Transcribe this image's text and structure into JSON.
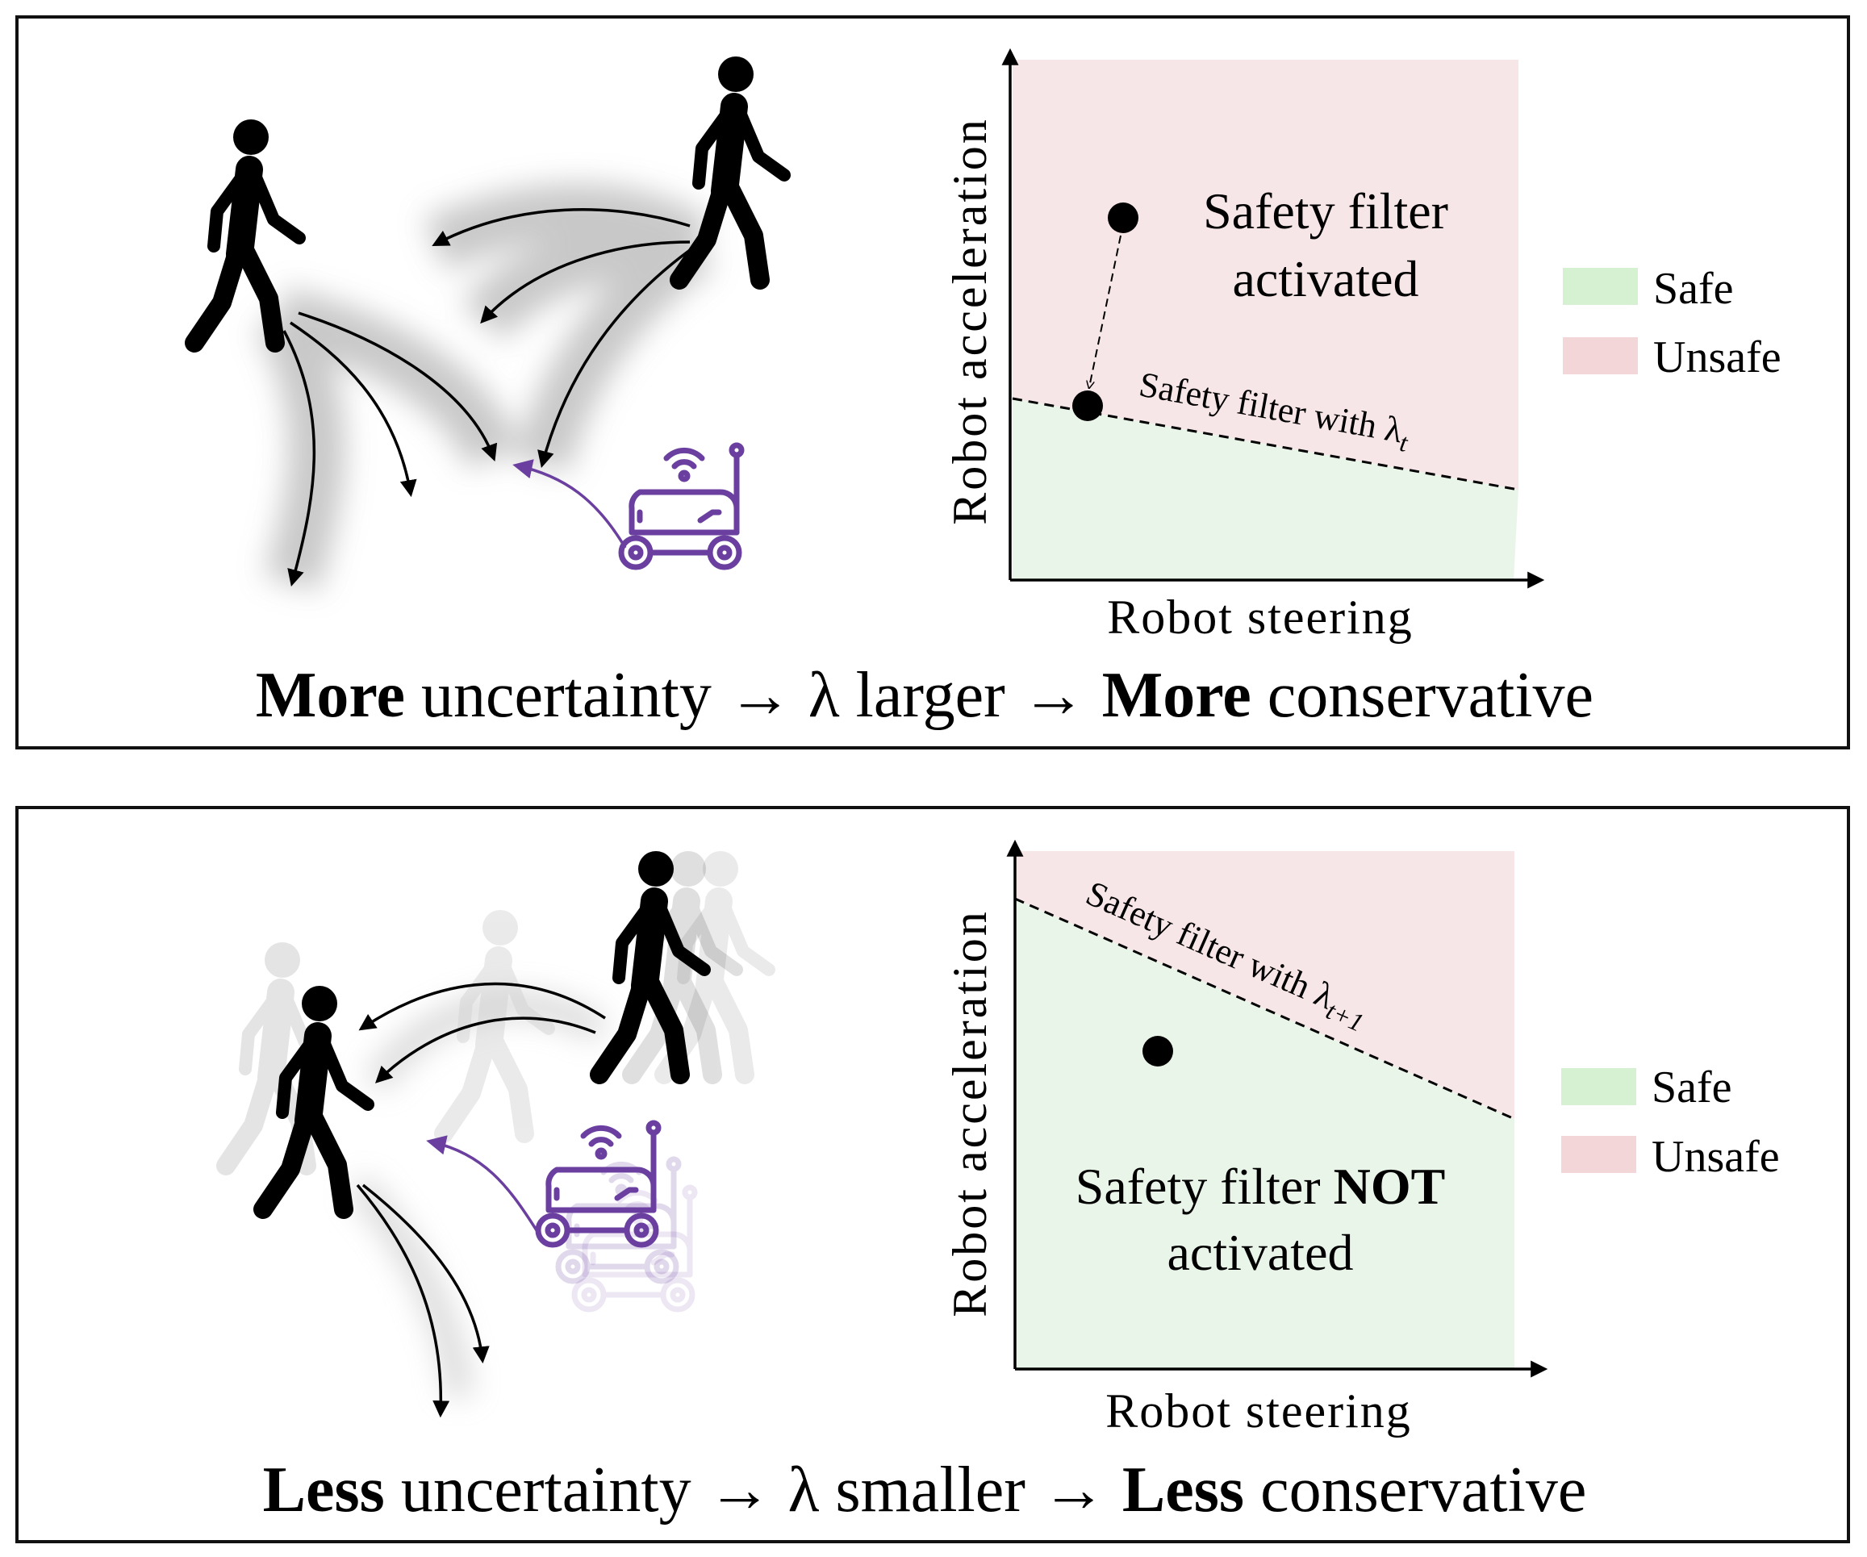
{
  "panels": [
    {
      "caption": {
        "bold1": "More",
        "mid": " uncertainty → λ larger → ",
        "bold2": "More",
        "end": " conservative"
      },
      "chart": {
        "ylabel": "Robot acceleration",
        "xlabel": "Robot steering",
        "annotation_line1": "Safety filter",
        "annotation_line2": "activated",
        "boundary_label": "Safety filter with λ",
        "boundary_subscript": "t"
      },
      "legend": {
        "safe": "Safe",
        "unsafe": "Unsafe"
      }
    },
    {
      "caption": {
        "bold1": "Less",
        "mid": " uncertainty → λ smaller → ",
        "bold2": "Less",
        "end": " conservative"
      },
      "chart": {
        "ylabel": "Robot acceleration",
        "xlabel": "Robot steering",
        "annotation_line1": "Safety filter ",
        "annotation_bold": "NOT",
        "annotation_line2": "activated",
        "boundary_label": "Safety filter with λ",
        "boundary_subscript": "t+1"
      },
      "legend": {
        "safe": "Safe",
        "unsafe": "Unsafe"
      }
    }
  ],
  "colors": {
    "safe": "#d6f0d2",
    "unsafe": "#f2d6d8",
    "safe_region": "#eaf5e9",
    "unsafe_region": "#f7e6e7",
    "robot": "#6b3fa0"
  }
}
